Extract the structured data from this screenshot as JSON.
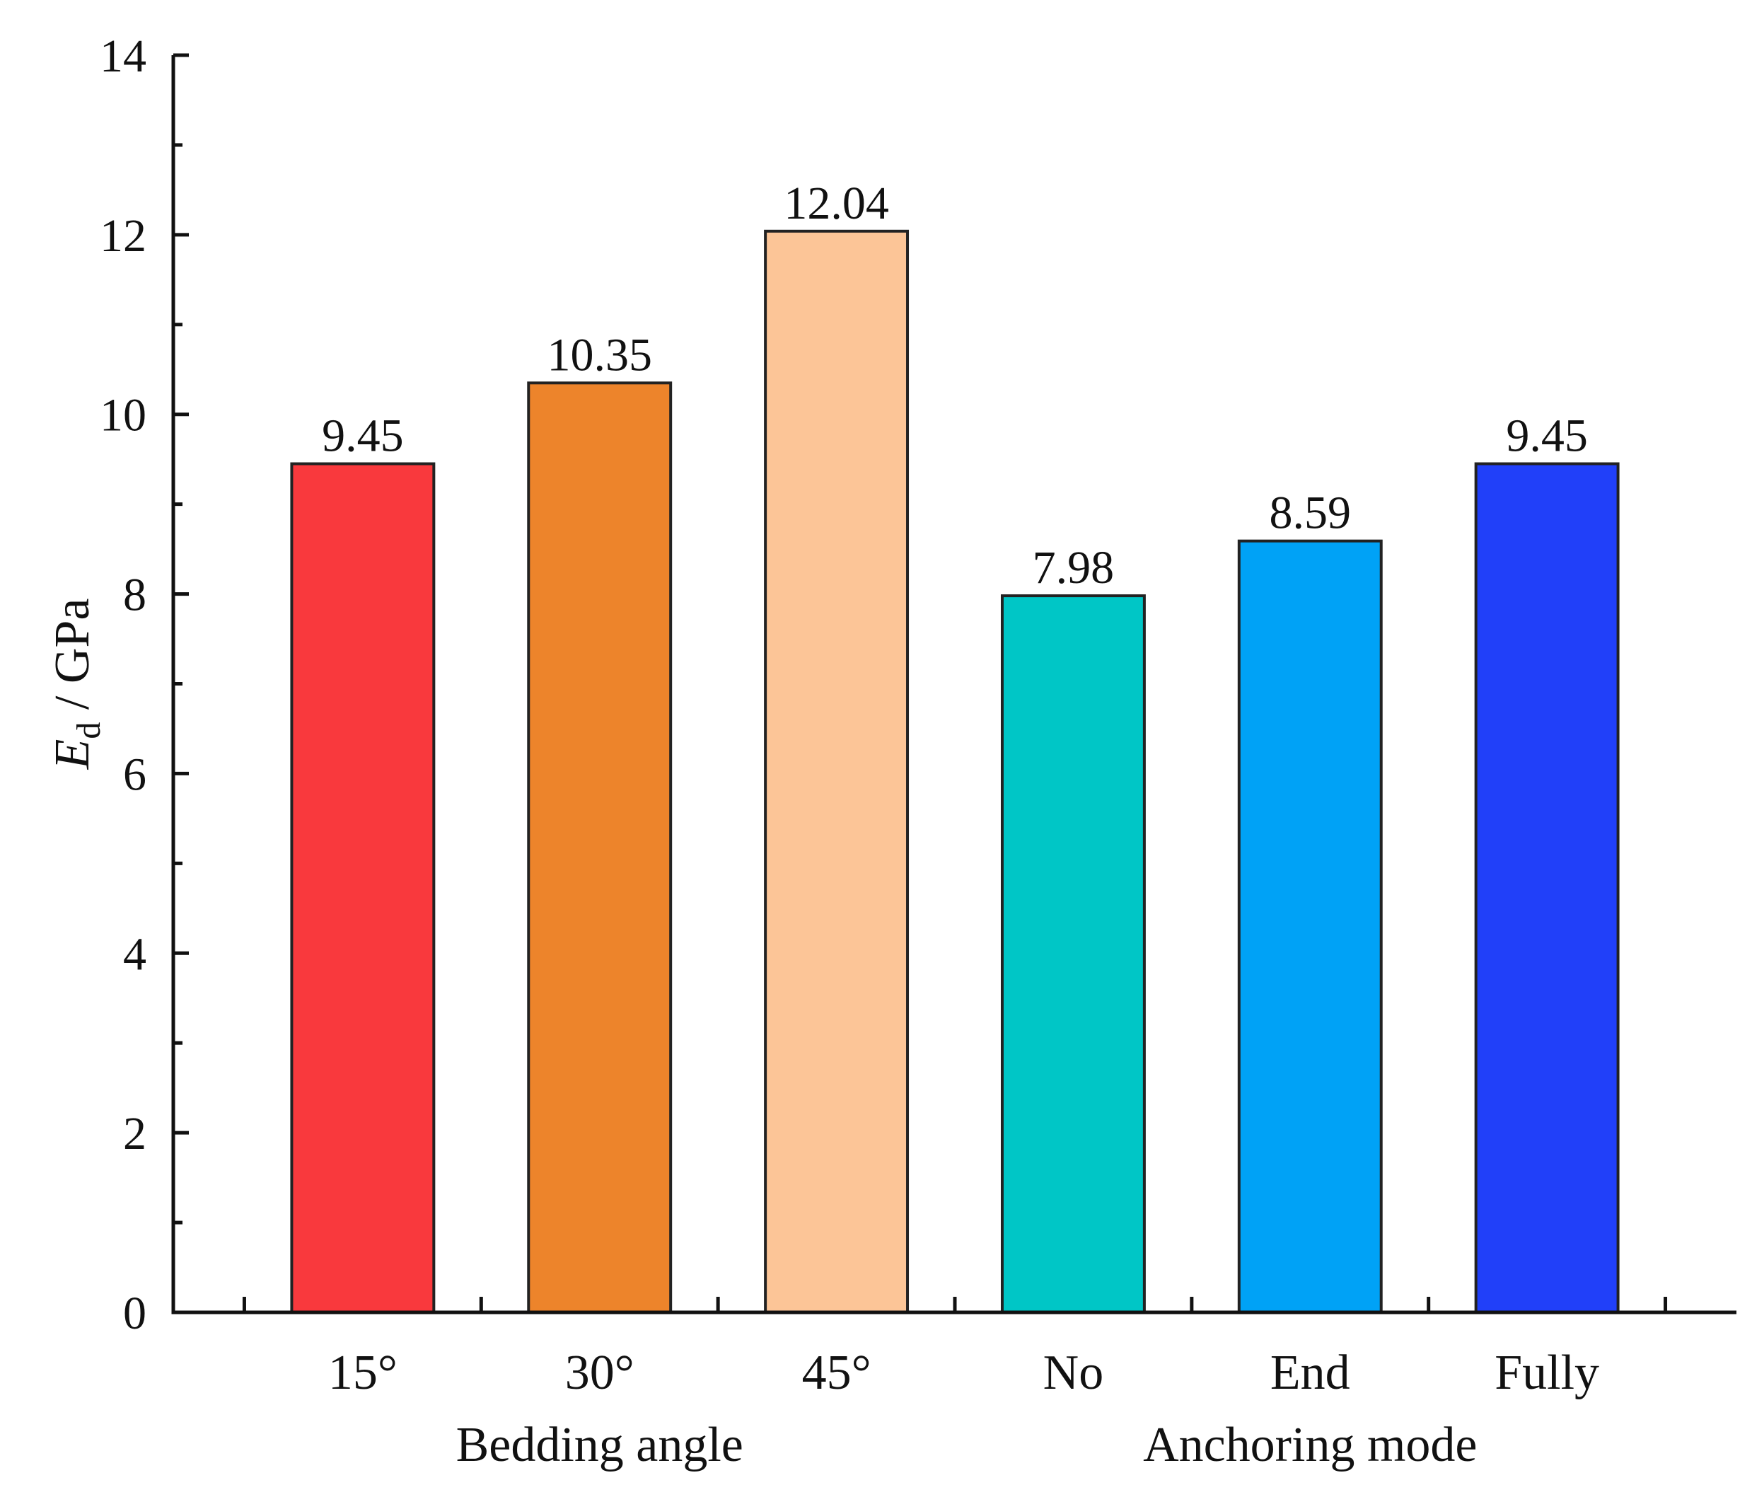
{
  "chart_data": {
    "type": "bar",
    "title": "",
    "xlabel": "",
    "ylabel": {
      "symbol": "E",
      "subscript": "d",
      "unit": " / GPa"
    },
    "ylim": [
      0,
      14
    ],
    "yticks": [
      0,
      2,
      4,
      6,
      8,
      10,
      12,
      14
    ],
    "ytick_labels": [
      "0",
      "2",
      "4",
      "6",
      "8",
      "10",
      "12",
      "14"
    ],
    "grid": false,
    "categories": [
      "15°",
      "30°",
      "45°",
      "No",
      "End",
      "Fully"
    ],
    "values": [
      9.45,
      10.35,
      12.04,
      7.98,
      8.59,
      9.45
    ],
    "value_labels": [
      "9.45",
      "10.35",
      "12.04",
      "7.98",
      "8.59",
      "9.45"
    ],
    "colors": [
      "#f9393d",
      "#ed842b",
      "#fcc597",
      "#00c6c6",
      "#00a2f6",
      "#2140f9"
    ],
    "groups": [
      {
        "label": "Bedding angle",
        "categories": [
          "15°",
          "30°",
          "45°"
        ]
      },
      {
        "label": "Anchoring mode",
        "categories": [
          "No",
          "End",
          "Fully"
        ]
      }
    ]
  }
}
